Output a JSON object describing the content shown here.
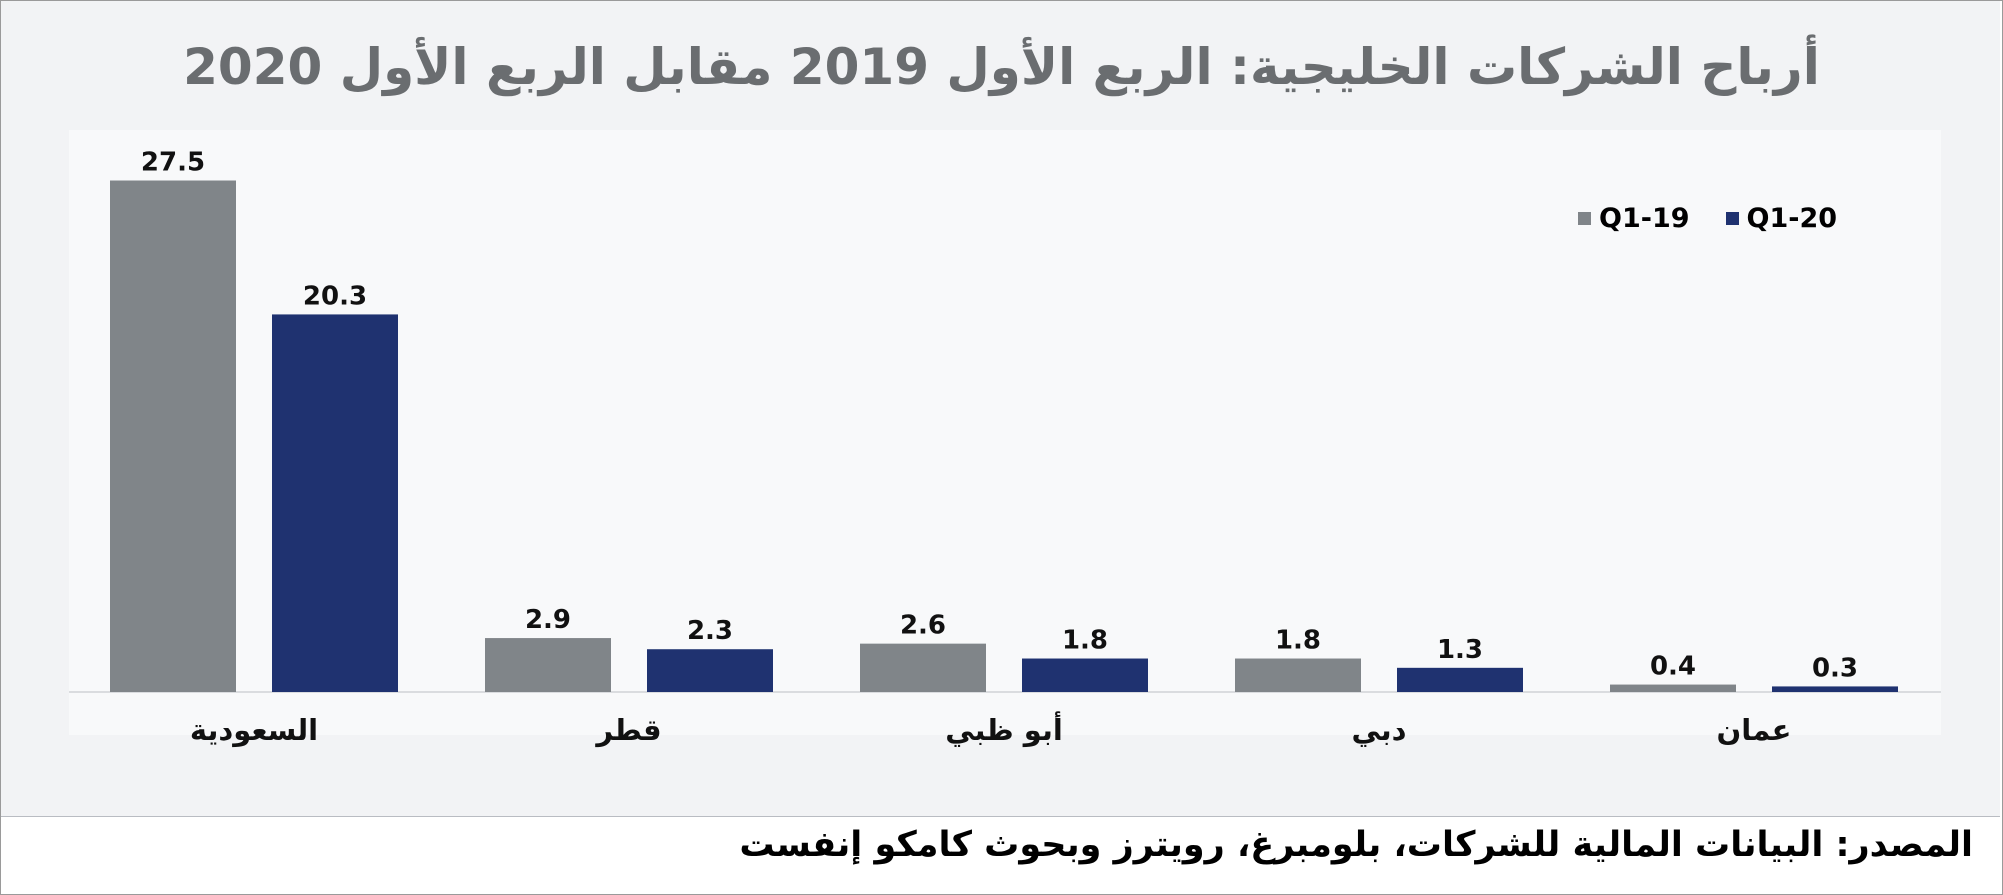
{
  "chart_data": {
    "type": "bar",
    "title": "أرباح الشركات الخليجية: الربع الأول 2019 مقابل الربع الأول 2020",
    "categories": [
      "السعودية",
      "قطر",
      "أبو ظبي",
      "دبي",
      "عمان"
    ],
    "series": [
      {
        "name": "Q1-19",
        "color": "#808589",
        "values": [
          27.5,
          2.9,
          2.6,
          1.8,
          0.4
        ]
      },
      {
        "name": "Q1-20",
        "color": "#1f3270",
        "values": [
          20.3,
          2.3,
          1.8,
          1.3,
          0.3
        ]
      }
    ],
    "value_labels": [
      [
        "27.5",
        "2.9",
        "2.6",
        "1.8",
        "0.4"
      ],
      [
        "20.3",
        "2.3",
        "1.8",
        "1.3",
        "0.3"
      ]
    ],
    "xlabel": "",
    "ylabel": "",
    "ylim": [
      0,
      30
    ],
    "grid": false,
    "legend_position": "top-right"
  },
  "legend": {
    "q1_19": "Q1-19",
    "q1_20": "Q1-20"
  },
  "source": "المصدر: البيانات المالية للشركات، بلومبرغ، رويترز وبحوث كامكو إنفست"
}
